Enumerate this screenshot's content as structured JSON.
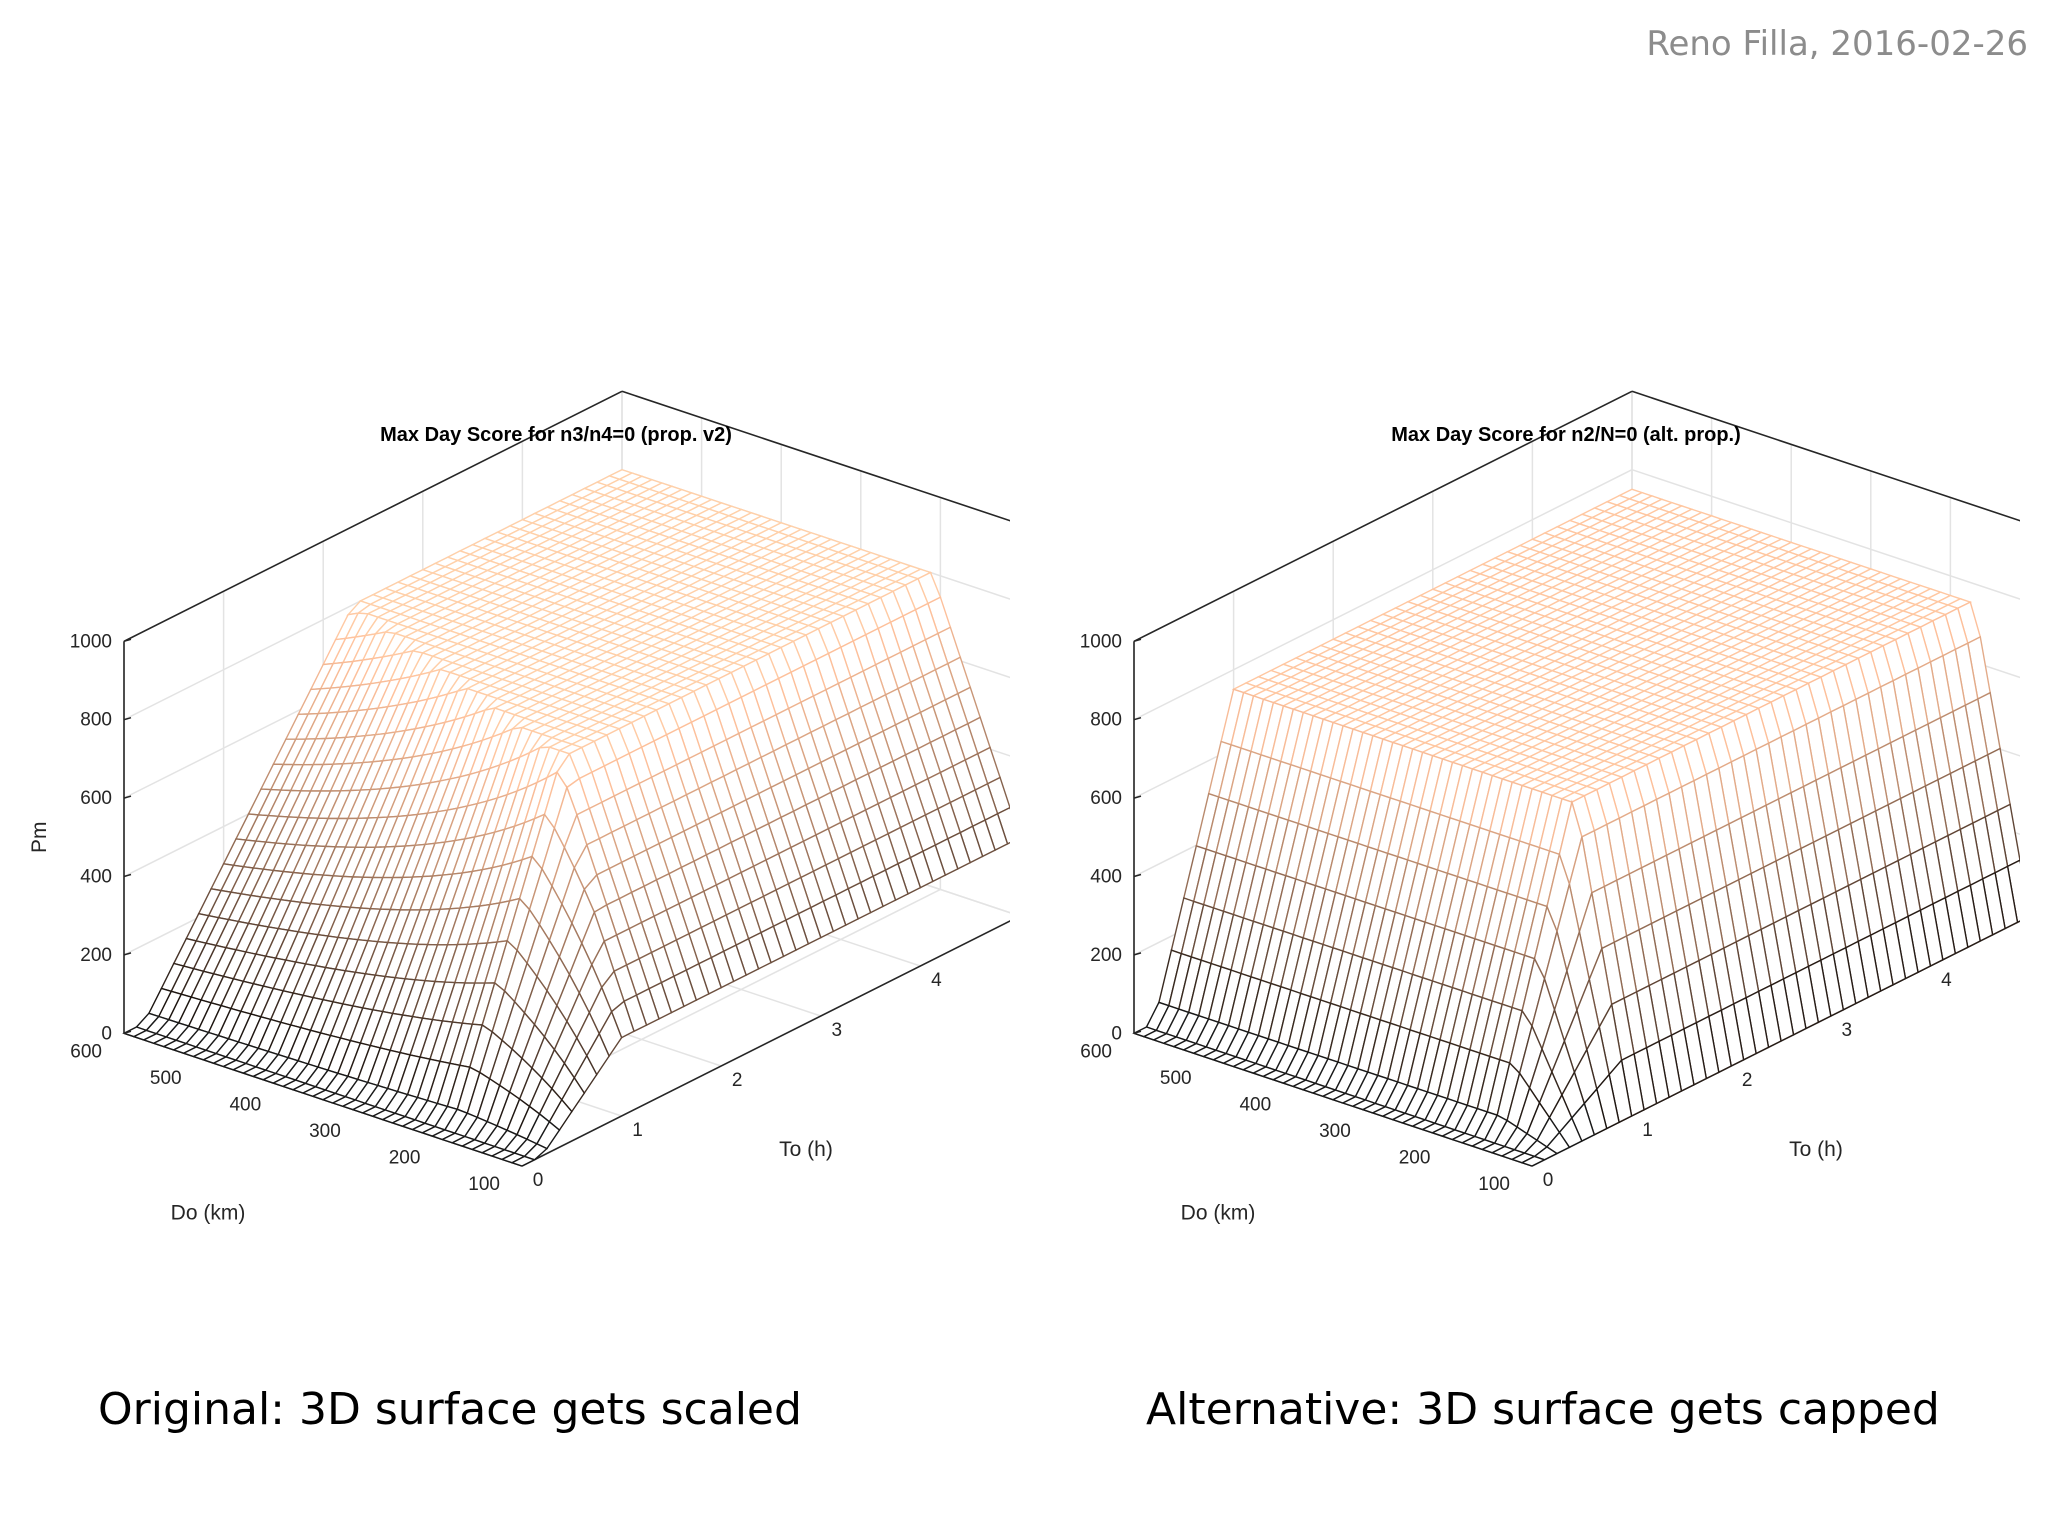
{
  "author_date": "Reno Filla, 2016-02-26",
  "captions": {
    "left": "Original:  3D surface gets scaled",
    "right": "Alternative:  3D surface gets capped"
  },
  "chart_data": [
    {
      "type": "surface",
      "title": "Max Day Score for n3/n4=0 (prop. v2)",
      "xlabel": "To (h)",
      "ylabel": "Do (km)",
      "zlabel": "Pm",
      "xlim": [
        0,
        5
      ],
      "ylim": [
        100,
        600
      ],
      "zlim": [
        0,
        1000
      ],
      "x_ticks": [
        0,
        1,
        2,
        3,
        4,
        5
      ],
      "y_ticks": [
        100,
        200,
        300,
        400,
        500,
        600
      ],
      "z_ticks": [
        0,
        200,
        400,
        600,
        800,
        1000
      ],
      "grid": true,
      "colormap": "copper",
      "surface_vertices": [
        {
          "To": 0.0,
          "Do": 600,
          "Pm": 0
        },
        {
          "To": 0.0,
          "Do": 100,
          "Pm": 0
        },
        {
          "To": 0.2,
          "Do": 600,
          "Pm": 0
        },
        {
          "To": 0.2,
          "Do": 100,
          "Pm": 0
        },
        {
          "To": 1.0,
          "Do": 100,
          "Pm": 200
        },
        {
          "To": 5.0,
          "Do": 100,
          "Pm": 200
        },
        {
          "To": 2.3,
          "Do": 600,
          "Pm": 800
        },
        {
          "To": 5.0,
          "Do": 600,
          "Pm": 800
        },
        {
          "To": 2.3,
          "Do": 210,
          "Pm": 800
        },
        {
          "To": 5.0,
          "Do": 210,
          "Pm": 800
        }
      ]
    },
    {
      "type": "surface",
      "title": "Max Day Score for n2/N=0 (alt. prop.)",
      "xlabel": "To (h)",
      "ylabel": "Do (km)",
      "zlabel": "",
      "xlim": [
        0,
        5
      ],
      "ylim": [
        100,
        600
      ],
      "zlim": [
        0,
        1000
      ],
      "x_ticks": [
        0,
        1,
        2,
        3,
        4,
        5
      ],
      "y_ticks": [
        100,
        200,
        300,
        400,
        500,
        600
      ],
      "z_ticks": [
        0,
        200,
        400,
        600,
        800,
        1000
      ],
      "grid": true,
      "colormap": "copper",
      "surface_vertices": [
        {
          "To": 0.0,
          "Do": 600,
          "Pm": 0
        },
        {
          "To": 0.0,
          "Do": 100,
          "Pm": 0
        },
        {
          "To": 0.2,
          "Do": 600,
          "Pm": 0
        },
        {
          "To": 0.2,
          "Do": 100,
          "Pm": 0
        },
        {
          "To": 1.0,
          "Do": 100,
          "Pm": 0
        },
        {
          "To": 5.0,
          "Do": 100,
          "Pm": 0
        },
        {
          "To": 1.0,
          "Do": 600,
          "Pm": 750
        },
        {
          "To": 5.0,
          "Do": 600,
          "Pm": 750
        },
        {
          "To": 1.0,
          "Do": 170,
          "Pm": 750
        },
        {
          "To": 5.0,
          "Do": 170,
          "Pm": 750
        }
      ]
    }
  ]
}
